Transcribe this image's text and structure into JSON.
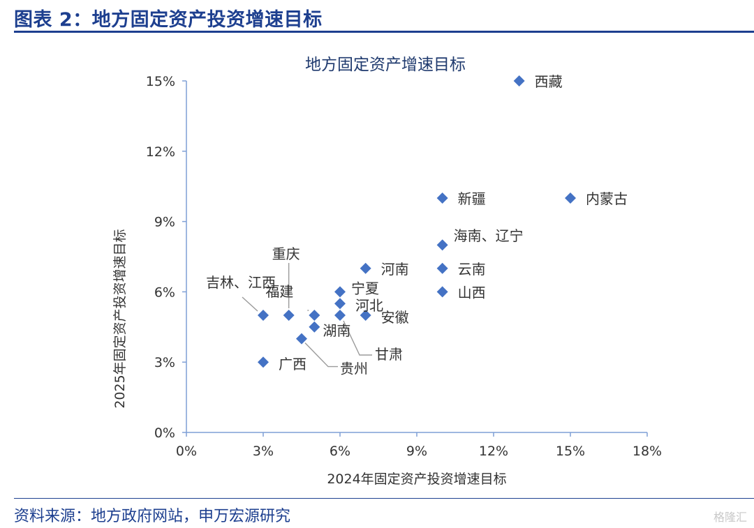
{
  "header": {
    "title": "图表 2：地方固定资产投资增速目标"
  },
  "footer": {
    "source": "资料来源：地方政府网站，申万宏源研究",
    "watermark": "格隆汇"
  },
  "colors": {
    "brand": "#1d3f8f",
    "marker": "#4472c4",
    "axis": "#7f9fd6",
    "title_text": "#1f3a6e",
    "label_text": "#333333"
  },
  "chart_data": {
    "type": "scatter",
    "title": "地方固定资产增速目标",
    "xlabel": "2024年固定资产投资增速目标",
    "ylabel": "2025年固定资产投资增速目标",
    "xlim": [
      0,
      18
    ],
    "ylim": [
      0,
      15
    ],
    "xticks": [
      0,
      3,
      6,
      9,
      12,
      15,
      18
    ],
    "yticks": [
      0,
      3,
      6,
      9,
      12,
      15
    ],
    "xtick_labels": [
      "0%",
      "3%",
      "6%",
      "9%",
      "12%",
      "15%",
      "18%"
    ],
    "ytick_labels": [
      "0%",
      "3%",
      "6%",
      "9%",
      "12%",
      "15%"
    ],
    "grid": false,
    "legend": "none",
    "points": [
      {
        "label": "西藏",
        "x": 13,
        "y": 15
      },
      {
        "label": "内蒙古",
        "x": 15,
        "y": 10
      },
      {
        "label": "新疆",
        "x": 10,
        "y": 10
      },
      {
        "label": "海南、辽宁",
        "x": 10,
        "y": 8
      },
      {
        "label": "云南",
        "x": 10,
        "y": 7
      },
      {
        "label": "山西",
        "x": 10,
        "y": 6
      },
      {
        "label": "河南",
        "x": 7,
        "y": 7
      },
      {
        "label": "宁夏",
        "x": 6,
        "y": 6
      },
      {
        "label": "河北",
        "x": 6,
        "y": 5.5
      },
      {
        "label": "安徽",
        "x": 7,
        "y": 5
      },
      {
        "label": "甘肃",
        "x": 6,
        "y": 5
      },
      {
        "label": "福建",
        "x": 5,
        "y": 5
      },
      {
        "label": "重庆",
        "x": 4,
        "y": 5
      },
      {
        "label": "吉林、江西",
        "x": 3,
        "y": 5
      },
      {
        "label": "湖南",
        "x": 5,
        "y": 4.5
      },
      {
        "label": "贵州",
        "x": 4.5,
        "y": 4
      },
      {
        "label": "广西",
        "x": 3,
        "y": 3
      }
    ]
  }
}
